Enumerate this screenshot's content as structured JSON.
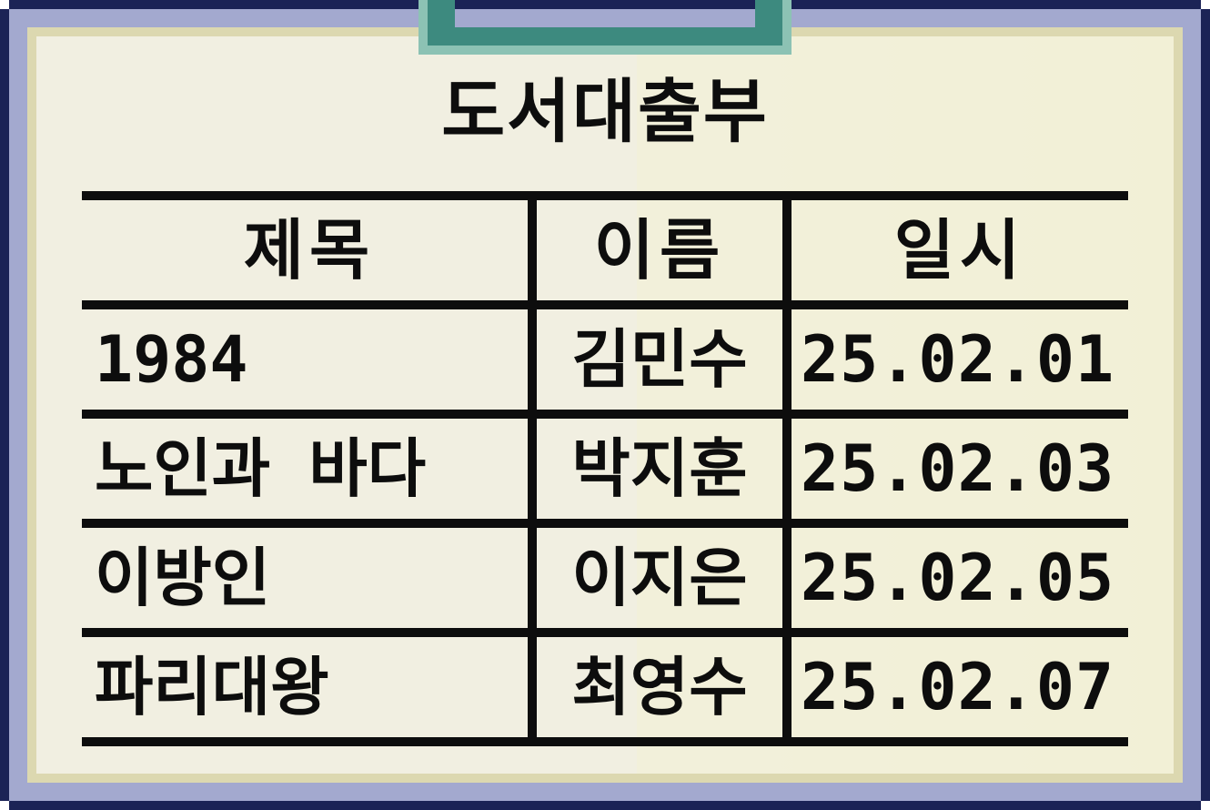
{
  "ledger": {
    "title": "도서대출부",
    "columns": [
      "제목",
      "이름",
      "일시"
    ],
    "rows": [
      {
        "title": "1984",
        "name": "김민수",
        "date": "25.02.01"
      },
      {
        "title": "노인과 바다",
        "name": "박지훈",
        "date": "25.02.03"
      },
      {
        "title": "이방인",
        "name": "이지은",
        "date": "25.02.05"
      },
      {
        "title": "파리대왕",
        "name": "최영수",
        "date": "25.02.07"
      }
    ]
  },
  "colors": {
    "frame_dark": "#1b2356",
    "frame_blue": "#a3a9cf",
    "paper": "#f1efe1",
    "clip": "#3d8a7f",
    "ink": "#0d0d0d"
  }
}
